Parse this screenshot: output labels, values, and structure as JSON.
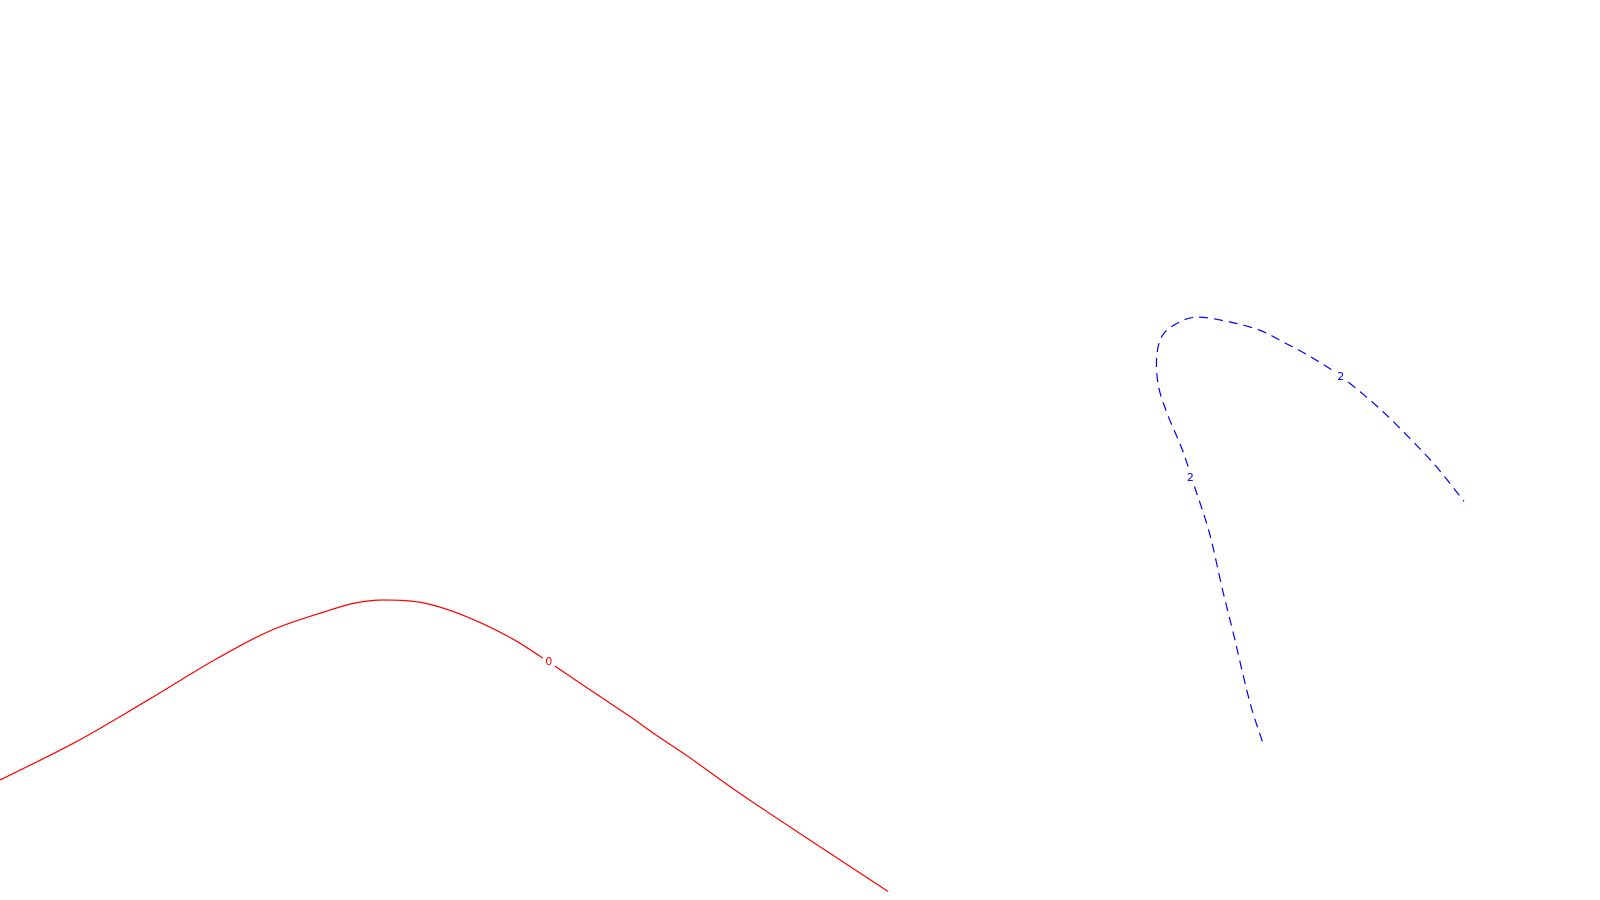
{
  "chart_data": {
    "type": "line",
    "title": "",
    "xlabel": "",
    "ylabel": "",
    "grid": false,
    "legend": "none",
    "colors": {
      "background": "#ffffff",
      "level_0": "#ff0000",
      "level_2": "#0000ff"
    },
    "series": [
      {
        "level_label": "0",
        "color": "#ff0000",
        "dashed": false,
        "x": [
          0.0,
          4.8,
          9.4,
          13.4,
          17.0,
          20.5,
          22.2,
          24.0,
          26.5,
          29.1,
          32.0,
          34.5,
          36.3,
          37.9,
          39.5,
          41.0,
          43.0,
          46.0,
          50.0,
          55.5
        ],
        "y": [
          1.8,
          2.7,
          3.7,
          4.6,
          5.3,
          5.75,
          5.93,
          6.0,
          5.93,
          5.62,
          5.1,
          4.5,
          4.05,
          3.65,
          3.25,
          2.85,
          2.35,
          1.55,
          0.55,
          -0.8
        ],
        "labels": [
          {
            "text": "0",
            "x": 34.3,
            "y": 4.55
          }
        ]
      },
      {
        "level_label": "2",
        "color": "#0000ff",
        "dashed": true,
        "x": [
          78.9,
          78.2,
          77.6,
          77.1,
          76.4,
          75.6,
          74.7,
          73.9,
          73.0,
          72.4,
          72.3,
          72.7,
          73.8,
          74.9,
          76.7,
          78.7,
          80.3,
          81.8,
          83.5,
          85.2,
          86.7,
          88.3,
          89.8,
          91.5
        ],
        "y": [
          2.7,
          3.5,
          4.4,
          5.2,
          6.25,
          7.55,
          8.6,
          9.5,
          10.3,
          11.0,
          11.7,
          12.2,
          12.5,
          12.6,
          12.5,
          12.3,
          12.0,
          11.7,
          11.3,
          10.8,
          10.3,
          9.7,
          9.1,
          8.3
        ],
        "labels": [
          {
            "text": "2",
            "x": 74.4,
            "y": 8.85
          },
          {
            "text": "2",
            "x": 83.8,
            "y": 11.2
          }
        ]
      }
    ],
    "xlim": [
      0,
      100
    ],
    "ylim": [
      -1,
      20
    ]
  }
}
